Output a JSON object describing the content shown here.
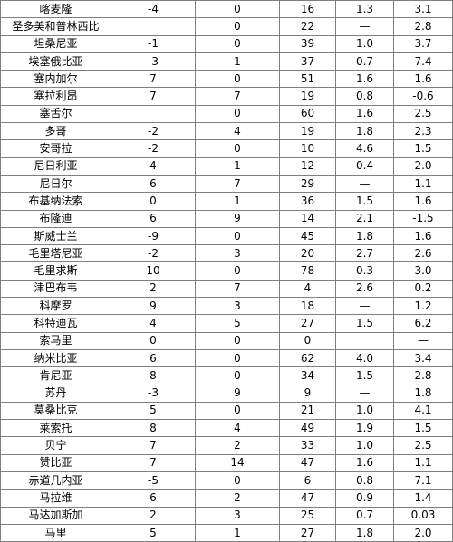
{
  "rows": [
    [
      "喀麦隆",
      "-4",
      "0",
      "16",
      "1.3",
      "3.1"
    ],
    [
      "圣多美和普林西比",
      "",
      "0",
      "22",
      "—",
      "2.8"
    ],
    [
      "坦桑尼亚",
      "-1",
      "0",
      "39",
      "1.0",
      "3.7"
    ],
    [
      "埃塞俄比亚",
      "-3",
      "1",
      "37",
      "0.7",
      "7.4"
    ],
    [
      "塞内加尔",
      "7",
      "0",
      "51",
      "1.6",
      "1.6"
    ],
    [
      "塞拉利昂",
      "7",
      "7",
      "19",
      "0.8",
      "-0.6"
    ],
    [
      "塞舌尔",
      "",
      "0",
      "60",
      "1.6",
      "2.5"
    ],
    [
      "多哥",
      "-2",
      "4",
      "19",
      "1.8",
      "2.3"
    ],
    [
      "安哥拉",
      "-2",
      "0",
      "10",
      "4.6",
      "1.5"
    ],
    [
      "尼日利亚",
      "4",
      "1",
      "12",
      "0.4",
      "2.0"
    ],
    [
      "尼日尔",
      "6",
      "7",
      "29",
      "—",
      "1.1"
    ],
    [
      "布基纳法索",
      "0",
      "1",
      "36",
      "1.5",
      "1.6"
    ],
    [
      "布隆迪",
      "6",
      "9",
      "14",
      "2.1",
      "-1.5"
    ],
    [
      "斯威士兰",
      "-9",
      "0",
      "45",
      "1.8",
      "1.6"
    ],
    [
      "毛里塔尼亚",
      "-2",
      "3",
      "20",
      "2.7",
      "2.6"
    ],
    [
      "毛里求斯",
      "10",
      "0",
      "78",
      "0.3",
      "3.0"
    ],
    [
      "津巴布韦",
      "2",
      "7",
      "4",
      "2.6",
      "0.2"
    ],
    [
      "科摩罗",
      "9",
      "3",
      "18",
      "—",
      "1.2"
    ],
    [
      "科特迪瓦",
      "4",
      "5",
      "27",
      "1.5",
      "6.2"
    ],
    [
      "索马里",
      "0",
      "0",
      "0",
      "",
      "—"
    ],
    [
      "纳米比亚",
      "6",
      "0",
      "62",
      "4.0",
      "3.4"
    ],
    [
      "肯尼亚",
      "8",
      "0",
      "34",
      "1.5",
      "2.8"
    ],
    [
      "苏丹",
      "-3",
      "9",
      "9",
      "—",
      "1.8"
    ],
    [
      "莫桑比克",
      "5",
      "0",
      "21",
      "1.0",
      "4.1"
    ],
    [
      "莱索托",
      "8",
      "4",
      "49",
      "1.9",
      "1.5"
    ],
    [
      "贝宁",
      "7",
      "2",
      "33",
      "1.0",
      "2.5"
    ],
    [
      "赞比亚",
      "7",
      "14",
      "47",
      "1.6",
      "1.1"
    ],
    [
      "赤道几内亚",
      "-5",
      "0",
      "6",
      "0.8",
      "7.1"
    ],
    [
      "马拉维",
      "6",
      "2",
      "47",
      "0.9",
      "1.4"
    ],
    [
      "马达加斯加",
      "2",
      "3",
      "25",
      "0.7",
      "0.03"
    ],
    [
      "马里",
      "5",
      "1",
      "27",
      "1.8",
      "2.0"
    ]
  ]
}
